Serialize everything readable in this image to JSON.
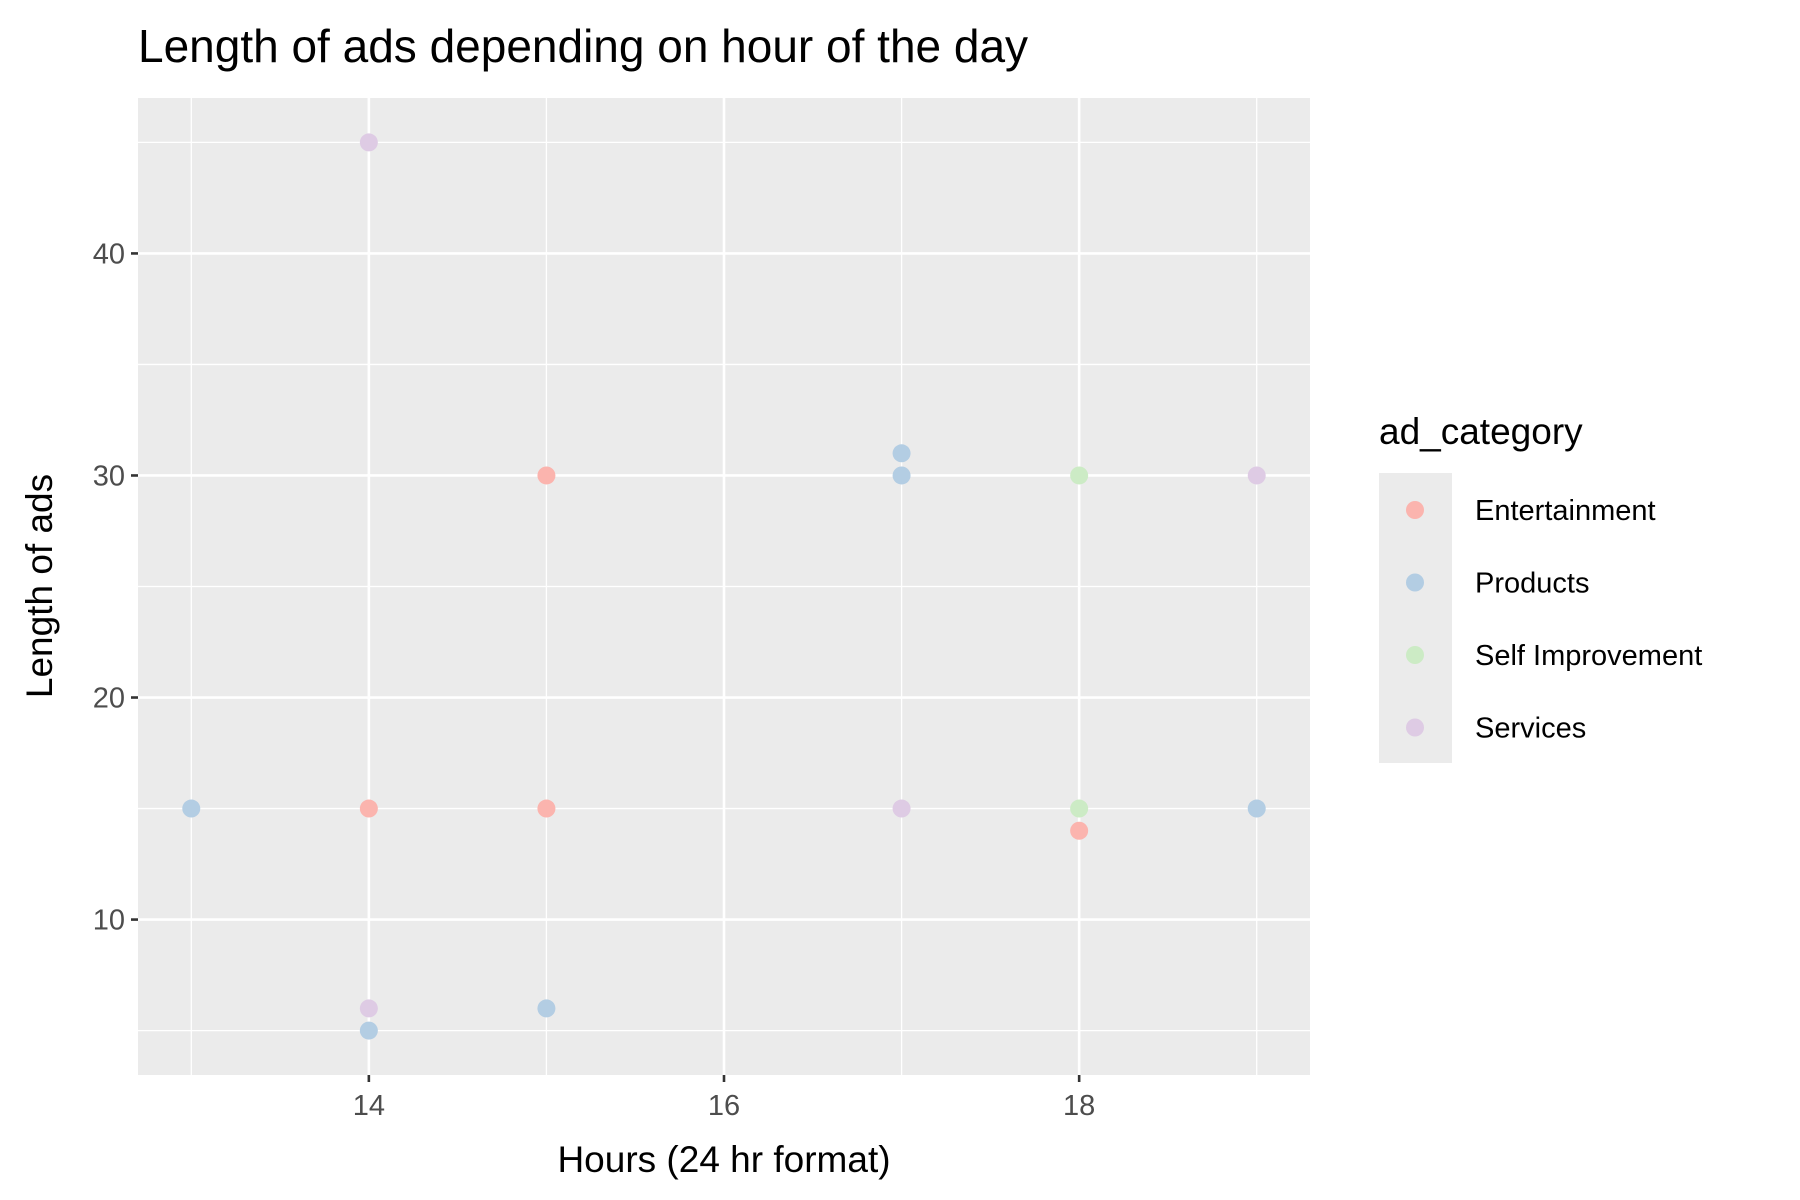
{
  "chart_data": {
    "type": "scatter",
    "title": "Length of ads depending on hour of the day",
    "xlabel": "Hours (24 hr format)",
    "ylabel": "Length of ads",
    "xlim": [
      12.7,
      19.3
    ],
    "ylim": [
      3,
      47
    ],
    "x_ticks": [
      14,
      16,
      18
    ],
    "x_minor_ticks": [
      13,
      15,
      17,
      19
    ],
    "y_ticks": [
      10,
      20,
      30,
      40
    ],
    "y_minor_ticks": [
      5,
      15,
      25,
      35,
      45
    ],
    "grid": true,
    "legend": {
      "title": "ad_category",
      "position": "right"
    },
    "series": [
      {
        "name": "Entertainment",
        "color": "#FBB4AE",
        "points": [
          {
            "x": 14,
            "y": 15
          },
          {
            "x": 15,
            "y": 30
          },
          {
            "x": 15,
            "y": 15
          },
          {
            "x": 18,
            "y": 14
          }
        ]
      },
      {
        "name": "Products",
        "color": "#B3CDE3",
        "points": [
          {
            "x": 13,
            "y": 15
          },
          {
            "x": 14,
            "y": 5
          },
          {
            "x": 15,
            "y": 6
          },
          {
            "x": 17,
            "y": 31
          },
          {
            "x": 17,
            "y": 30
          },
          {
            "x": 19,
            "y": 15
          }
        ]
      },
      {
        "name": "Self Improvement",
        "color": "#CCEBC5",
        "points": [
          {
            "x": 18,
            "y": 30
          },
          {
            "x": 18,
            "y": 15
          }
        ]
      },
      {
        "name": "Services",
        "color": "#DECBE4",
        "points": [
          {
            "x": 14,
            "y": 45
          },
          {
            "x": 14,
            "y": 6
          },
          {
            "x": 17,
            "y": 15
          },
          {
            "x": 19,
            "y": 30
          }
        ]
      }
    ]
  }
}
